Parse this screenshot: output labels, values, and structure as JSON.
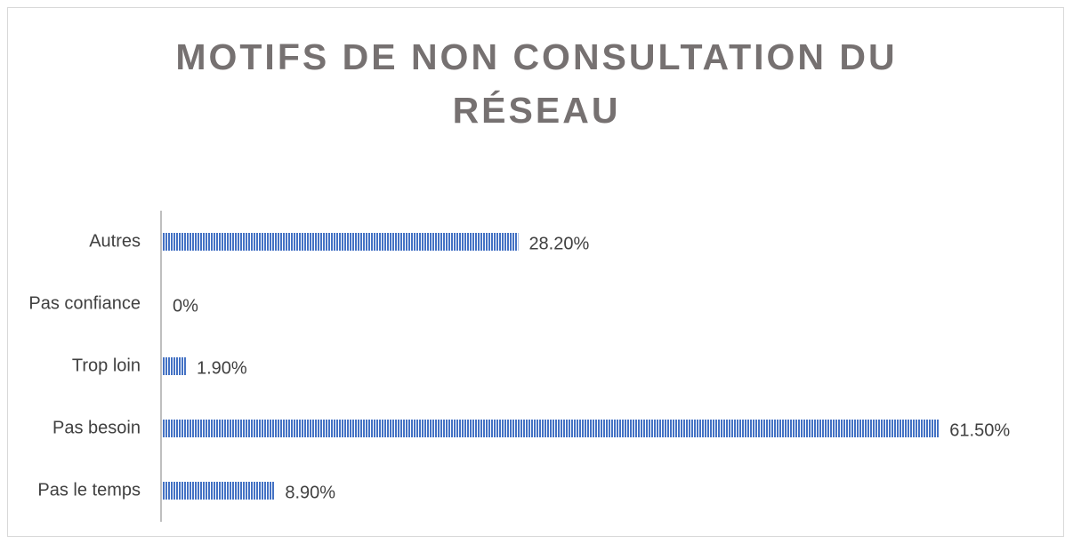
{
  "chart_data": {
    "type": "hbar",
    "title": "MOTIFS DE NON CONSULTATION DU RÉSEAU",
    "categories": [
      "Autres",
      "Pas confiance",
      "Trop loin",
      "Pas besoin",
      "Pas le temps"
    ],
    "values": [
      28.2,
      0,
      1.9,
      61.5,
      8.9
    ],
    "value_labels": [
      "28.20%",
      "0%",
      "1.90%",
      "61.50%",
      "8.90%"
    ],
    "color": "#4472c4",
    "xlim": [
      0,
      70
    ]
  }
}
